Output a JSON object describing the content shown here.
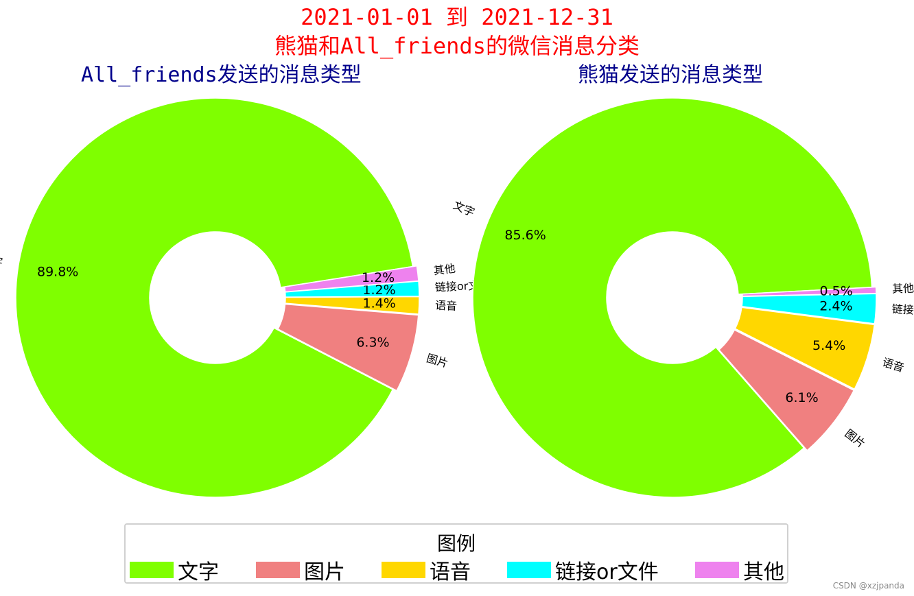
{
  "title": {
    "line1": "2021-01-01 到 2021-12-31",
    "line2": "熊猫和All_friends的微信消息分类"
  },
  "chart_data": [
    {
      "type": "pie",
      "subtitle": "All_friends发送的消息类型",
      "categories": [
        "文字",
        "图片",
        "语音",
        "链接or文件",
        "其他"
      ],
      "values": [
        89.8,
        6.3,
        1.4,
        1.2,
        1.2
      ],
      "value_labels": [
        "89.8%",
        "6.3%",
        "1.4%",
        "1.2%",
        "1.2%"
      ],
      "donut": true
    },
    {
      "type": "pie",
      "subtitle": "熊猫发送的消息类型",
      "categories": [
        "文字",
        "图片",
        "语音",
        "链接or文件",
        "其他"
      ],
      "values": [
        85.6,
        6.1,
        5.4,
        2.4,
        0.5
      ],
      "value_labels": [
        "85.6%",
        "6.1%",
        "5.4%",
        "2.4%",
        "0.5%"
      ],
      "donut": true
    }
  ],
  "colors": {
    "文字": "#7fff00",
    "图片": "#f08080",
    "语音": "#ffd700",
    "链接or文件": "#00ffff",
    "其他": "#ee82ee"
  },
  "legend": {
    "title": "图例",
    "position": "bottom-center",
    "items": [
      {
        "label": "文字",
        "color": "#7fff00"
      },
      {
        "label": "图片",
        "color": "#f08080"
      },
      {
        "label": "语音",
        "color": "#ffd700"
      },
      {
        "label": "链接or文件",
        "color": "#00ffff"
      },
      {
        "label": "其他",
        "color": "#ee82ee"
      }
    ]
  },
  "watermark": "CSDN @xzjpanda"
}
